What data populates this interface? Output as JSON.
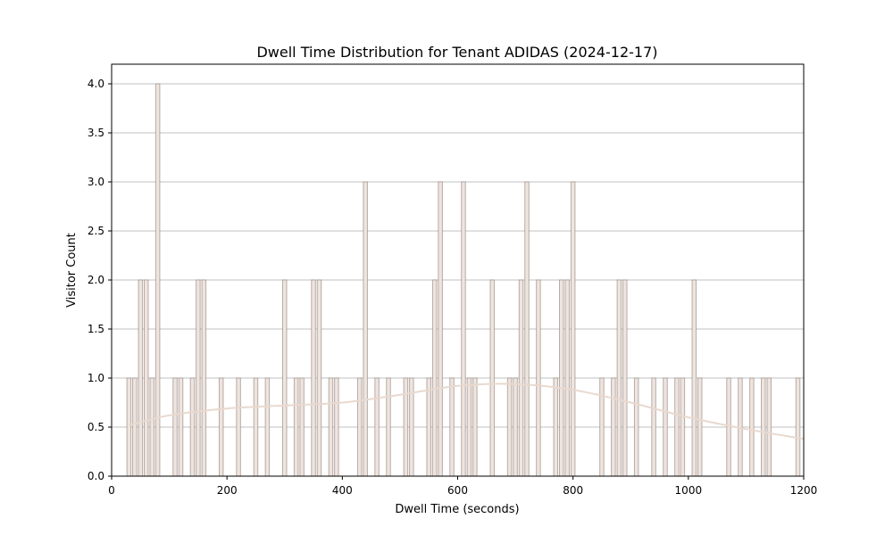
{
  "chart_data": {
    "type": "bar",
    "title": "Dwell Time Distribution for Tenant ADIDAS (2024-12-17)",
    "xlabel": "Dwell Time (seconds)",
    "ylabel": "Visitor Count",
    "xlim": [
      0,
      1200
    ],
    "ylim": [
      0,
      4.2
    ],
    "x_ticks": [
      0,
      200,
      400,
      600,
      800,
      1000,
      1200
    ],
    "y_ticks": [
      0.0,
      0.5,
      1.0,
      1.5,
      2.0,
      2.5,
      3.0,
      3.5,
      4.0
    ],
    "grid": "y-axis horizontal",
    "bin_width": 10,
    "bins": [
      {
        "x": 30,
        "count": 1
      },
      {
        "x": 40,
        "count": 1
      },
      {
        "x": 50,
        "count": 2
      },
      {
        "x": 60,
        "count": 2
      },
      {
        "x": 70,
        "count": 1
      },
      {
        "x": 80,
        "count": 4
      },
      {
        "x": 110,
        "count": 1
      },
      {
        "x": 120,
        "count": 1
      },
      {
        "x": 140,
        "count": 1
      },
      {
        "x": 150,
        "count": 2
      },
      {
        "x": 160,
        "count": 2
      },
      {
        "x": 190,
        "count": 1
      },
      {
        "x": 220,
        "count": 1
      },
      {
        "x": 250,
        "count": 1
      },
      {
        "x": 270,
        "count": 1
      },
      {
        "x": 300,
        "count": 2
      },
      {
        "x": 320,
        "count": 1
      },
      {
        "x": 330,
        "count": 1
      },
      {
        "x": 350,
        "count": 2
      },
      {
        "x": 360,
        "count": 2
      },
      {
        "x": 380,
        "count": 1
      },
      {
        "x": 390,
        "count": 1
      },
      {
        "x": 430,
        "count": 1
      },
      {
        "x": 440,
        "count": 3
      },
      {
        "x": 460,
        "count": 1
      },
      {
        "x": 480,
        "count": 1
      },
      {
        "x": 510,
        "count": 1
      },
      {
        "x": 520,
        "count": 1
      },
      {
        "x": 550,
        "count": 1
      },
      {
        "x": 560,
        "count": 2
      },
      {
        "x": 570,
        "count": 3
      },
      {
        "x": 590,
        "count": 1
      },
      {
        "x": 610,
        "count": 3
      },
      {
        "x": 620,
        "count": 1
      },
      {
        "x": 630,
        "count": 1
      },
      {
        "x": 660,
        "count": 2
      },
      {
        "x": 690,
        "count": 1
      },
      {
        "x": 700,
        "count": 1
      },
      {
        "x": 710,
        "count": 2
      },
      {
        "x": 720,
        "count": 3
      },
      {
        "x": 740,
        "count": 2
      },
      {
        "x": 770,
        "count": 1
      },
      {
        "x": 780,
        "count": 2
      },
      {
        "x": 790,
        "count": 2
      },
      {
        "x": 800,
        "count": 3
      },
      {
        "x": 850,
        "count": 1
      },
      {
        "x": 870,
        "count": 1
      },
      {
        "x": 880,
        "count": 2
      },
      {
        "x": 890,
        "count": 2
      },
      {
        "x": 910,
        "count": 1
      },
      {
        "x": 940,
        "count": 1
      },
      {
        "x": 960,
        "count": 1
      },
      {
        "x": 980,
        "count": 1
      },
      {
        "x": 990,
        "count": 1
      },
      {
        "x": 1010,
        "count": 2
      },
      {
        "x": 1020,
        "count": 1
      },
      {
        "x": 1070,
        "count": 1
      },
      {
        "x": 1090,
        "count": 1
      },
      {
        "x": 1110,
        "count": 1
      },
      {
        "x": 1130,
        "count": 1
      },
      {
        "x": 1140,
        "count": 1
      },
      {
        "x": 1190,
        "count": 1
      }
    ],
    "kde_line": {
      "x": [
        30,
        100,
        200,
        300,
        400,
        500,
        600,
        700,
        800,
        900,
        1000,
        1100,
        1200
      ],
      "y": [
        0.52,
        0.62,
        0.69,
        0.72,
        0.75,
        0.83,
        0.92,
        0.94,
        0.88,
        0.75,
        0.6,
        0.48,
        0.38
      ]
    },
    "colors": {
      "bar_fill": "#efe4de",
      "bar_edge": "#8c7f7a",
      "kde_line": "#e9d9cf",
      "grid": "#c0c0c0",
      "axis": "#000000"
    }
  }
}
